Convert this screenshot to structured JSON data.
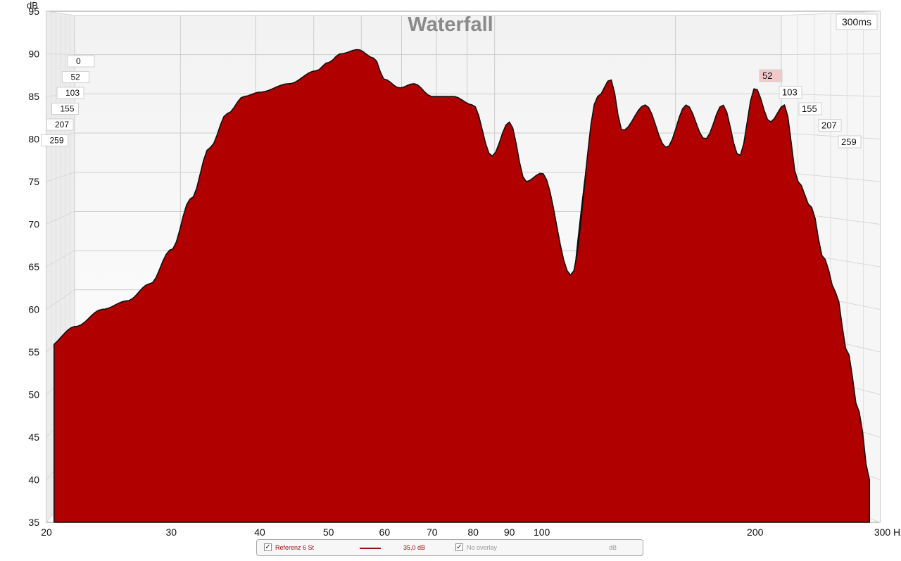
{
  "chart_data": {
    "type": "area",
    "title": "Waterfall",
    "time_window": "300ms",
    "ylabel": "dB",
    "xunit": "Hz",
    "yticks": [
      35,
      40,
      45,
      50,
      55,
      60,
      65,
      70,
      75,
      80,
      85,
      90,
      95
    ],
    "xticks": [
      {
        "value": 20,
        "label": "20"
      },
      {
        "value": 30,
        "label": "30"
      },
      {
        "value": 40,
        "label": "40"
      },
      {
        "value": 50,
        "label": "50"
      },
      {
        "value": 60,
        "label": "60"
      },
      {
        "value": 70,
        "label": "70"
      },
      {
        "value": 80,
        "label": "80"
      },
      {
        "value": 90,
        "label": "90"
      },
      {
        "value": 100,
        "label": "100"
      },
      {
        "value": 200,
        "label": "200"
      },
      {
        "value": 300,
        "label": "300 Hz"
      }
    ],
    "ylim": [
      35,
      95
    ],
    "xlim": [
      20,
      300
    ],
    "xscale": "log",
    "time_labels_left": [
      "0",
      "52",
      "103",
      "155",
      "207",
      "259"
    ],
    "time_labels_right": [
      "52",
      "103",
      "155",
      "207",
      "259"
    ],
    "fill_color": "#b00000",
    "line_color": "#111111",
    "first_slice": {
      "freq": [
        20,
        22,
        24,
        26,
        28,
        30,
        32,
        34,
        36,
        38,
        40,
        44,
        48,
        50,
        52,
        55,
        58,
        60,
        63,
        66,
        70,
        75,
        80,
        85,
        90,
        95,
        100,
        110,
        120,
        125,
        130,
        140,
        150,
        160,
        170,
        180,
        190,
        200,
        210,
        220,
        230,
        240,
        250,
        260,
        270,
        280,
        290
      ],
      "db": [
        55.5,
        58,
        60,
        61,
        63,
        67,
        73,
        79,
        83,
        85,
        85.5,
        86.5,
        88,
        89,
        90,
        90.5,
        89.5,
        87,
        86,
        86.5,
        85,
        85,
        84,
        78,
        82,
        75,
        76,
        64,
        85,
        87,
        81,
        84,
        79,
        84,
        80,
        84,
        78,
        86,
        82,
        84,
        75,
        72,
        66,
        62,
        55,
        48,
        40
      ]
    }
  },
  "legend": {
    "measurement_name": "Referenz 6 St",
    "level": "35,0 dB",
    "overlay_label": "No overlay",
    "unit": "dB"
  }
}
